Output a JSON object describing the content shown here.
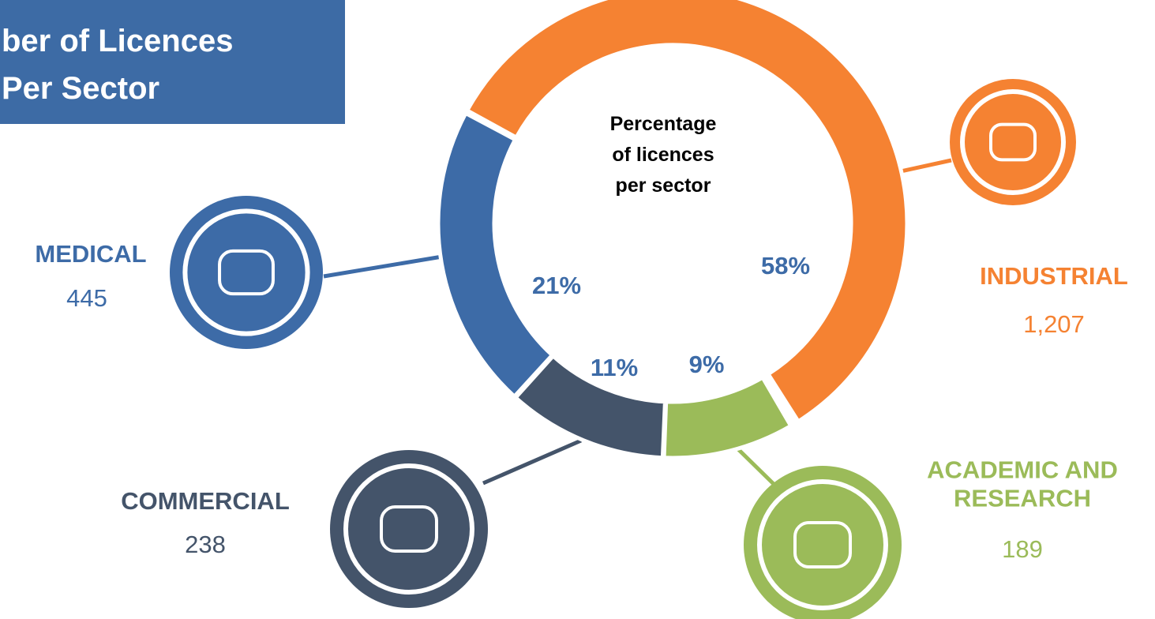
{
  "chart_data": {
    "type": "donut",
    "title_lines": [
      "ber of Licences",
      "Per Sector"
    ],
    "center_label": "Percentage of licences per sector",
    "categories": [
      "INDUSTRIAL",
      "ACADEMIC AND RESEARCH",
      "COMMERCIAL",
      "MEDICAL"
    ],
    "values": [
      58,
      9,
      11,
      21
    ],
    "value_labels": [
      "58%",
      "9%",
      "11%",
      "21%"
    ],
    "counts": [
      1207,
      189,
      238,
      445
    ],
    "count_labels": [
      "1,207",
      "189",
      "238",
      "445"
    ],
    "colors": [
      "#F58232",
      "#9BBB59",
      "#44546A",
      "#3D6BA7"
    ]
  }
}
